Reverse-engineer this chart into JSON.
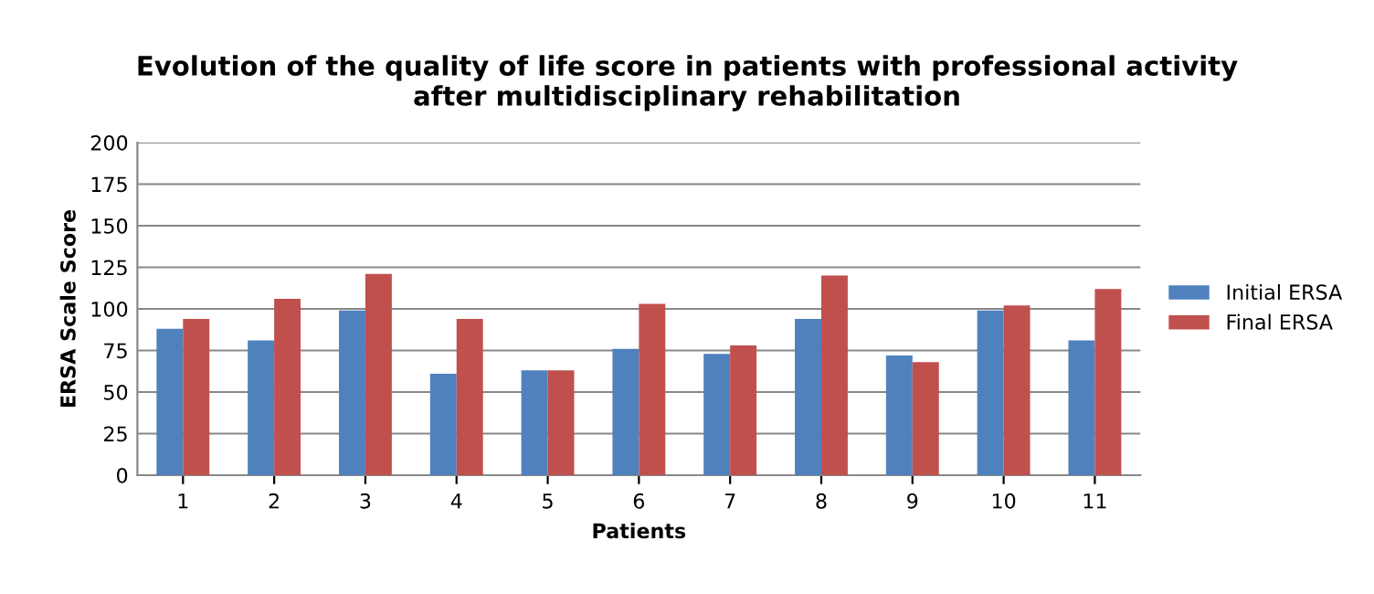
{
  "chart_data": {
    "type": "bar",
    "title": "Evolution of the quality of life score in patients with professional activity\nafter multidisciplinary rehabilitation",
    "xlabel": "Patients",
    "ylabel": "ERSA Scale Score",
    "categories": [
      "1",
      "2",
      "3",
      "4",
      "5",
      "6",
      "7",
      "8",
      "9",
      "10",
      "11"
    ],
    "series": [
      {
        "name": "Initial ERSA",
        "color": "#4f81bd",
        "values": [
          88,
          81,
          99,
          61,
          63,
          76,
          73,
          94,
          72,
          99,
          81
        ]
      },
      {
        "name": "Final ERSA",
        "color": "#c0504d",
        "values": [
          94,
          106,
          121,
          94,
          63,
          103,
          78,
          120,
          68,
          102,
          112
        ]
      }
    ],
    "ylim": [
      0,
      200
    ],
    "yticks": [
      0,
      25,
      50,
      75,
      100,
      125,
      150,
      175,
      200
    ],
    "grid": "y",
    "legend": "right"
  }
}
